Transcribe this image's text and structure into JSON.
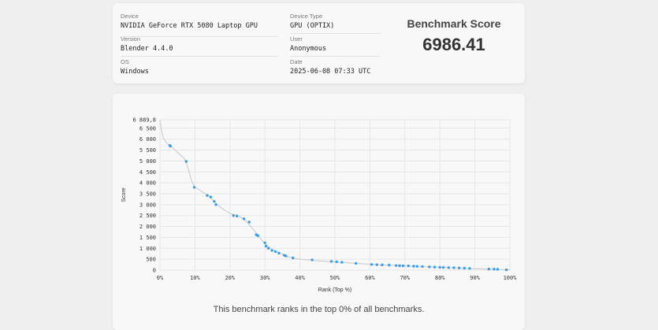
{
  "info": {
    "device": {
      "label": "Device",
      "value": "NVIDIA GeForce RTX 5080 Laptop GPU"
    },
    "version": {
      "label": "Version",
      "value": "Blender 4.4.0"
    },
    "os": {
      "label": "OS",
      "value": "Windows"
    },
    "device_type": {
      "label": "Device Type",
      "value": "GPU (OPTIX)"
    },
    "user": {
      "label": "User",
      "value": "Anonymous"
    },
    "date": {
      "label": "Date",
      "value": "2025-06-08 07:33 UTC"
    }
  },
  "score": {
    "title": "Benchmark Score",
    "value": "6986.41"
  },
  "note": "This benchmark ranks in the top 0% of all benchmarks.",
  "colors": {
    "point": "#3b9fe6",
    "line": "#cfcfcf"
  },
  "chart_data": {
    "type": "scatter",
    "xlabel": "Rank (Top %)",
    "ylabel": "Score",
    "xlim": [
      0,
      100
    ],
    "ylim": [
      0,
      6889.8
    ],
    "xticks": [
      "0%",
      "10%",
      "20%",
      "30%",
      "40%",
      "50%",
      "60%",
      "70%",
      "80%",
      "90%",
      "100%"
    ],
    "yticks": [
      {
        "v": 0,
        "t": "0"
      },
      {
        "v": 500,
        "t": "500"
      },
      {
        "v": 1000,
        "t": "1 000"
      },
      {
        "v": 1500,
        "t": "1 500"
      },
      {
        "v": 2000,
        "t": "2 000"
      },
      {
        "v": 2500,
        "t": "2 500"
      },
      {
        "v": 3000,
        "t": "3 000"
      },
      {
        "v": 3500,
        "t": "3 500"
      },
      {
        "v": 4000,
        "t": "4 000"
      },
      {
        "v": 4500,
        "t": "4 500"
      },
      {
        "v": 5000,
        "t": "5 000"
      },
      {
        "v": 5500,
        "t": "5 500"
      },
      {
        "v": 6000,
        "t": "6 000"
      },
      {
        "v": 6500,
        "t": "6 500"
      },
      {
        "v": 6889.8,
        "t": "6 889,8"
      }
    ],
    "curve": [
      [
        0,
        6889
      ],
      [
        0.5,
        6350
      ],
      [
        1,
        6050
      ],
      [
        2,
        5800
      ],
      [
        3,
        5700
      ],
      [
        4,
        5550
      ],
      [
        5,
        5400
      ],
      [
        6,
        5250
      ],
      [
        7,
        5100
      ],
      [
        8,
        4700
      ],
      [
        9,
        4100
      ],
      [
        10,
        3800
      ],
      [
        12,
        3600
      ],
      [
        14,
        3400
      ],
      [
        16,
        3050
      ],
      [
        18,
        2800
      ],
      [
        20,
        2600
      ],
      [
        22,
        2500
      ],
      [
        24,
        2350
      ],
      [
        26,
        2000
      ],
      [
        28,
        1600
      ],
      [
        30,
        1200
      ],
      [
        32,
        950
      ],
      [
        34,
        800
      ],
      [
        36,
        650
      ],
      [
        38,
        550
      ],
      [
        40,
        500
      ],
      [
        45,
        430
      ],
      [
        50,
        380
      ],
      [
        55,
        320
      ],
      [
        60,
        270
      ],
      [
        65,
        230
      ],
      [
        70,
        200
      ],
      [
        75,
        170
      ],
      [
        80,
        130
      ],
      [
        85,
        100
      ],
      [
        90,
        70
      ],
      [
        95,
        40
      ],
      [
        100,
        10
      ]
    ],
    "points": [
      [
        2.8,
        5710
      ],
      [
        3.0,
        5680
      ],
      [
        7.5,
        4980
      ],
      [
        9.8,
        3790
      ],
      [
        13.5,
        3420
      ],
      [
        14.5,
        3350
      ],
      [
        15.5,
        3150
      ],
      [
        16.0,
        3000
      ],
      [
        21.0,
        2500
      ],
      [
        22.0,
        2480
      ],
      [
        24.0,
        2350
      ],
      [
        25.5,
        2200
      ],
      [
        27.5,
        1620
      ],
      [
        28.0,
        1580
      ],
      [
        30.0,
        1250
      ],
      [
        30.3,
        1100
      ],
      [
        31.0,
        1000
      ],
      [
        32.0,
        900
      ],
      [
        33.0,
        850
      ],
      [
        34.0,
        780
      ],
      [
        35.5,
        680
      ],
      [
        36.0,
        650
      ],
      [
        38.0,
        560
      ],
      [
        43.5,
        470
      ],
      [
        49.0,
        400
      ],
      [
        50.5,
        380
      ],
      [
        52.0,
        360
      ],
      [
        56.0,
        310
      ],
      [
        60.5,
        260
      ],
      [
        62.0,
        250
      ],
      [
        63.5,
        240
      ],
      [
        65.5,
        230
      ],
      [
        67.5,
        210
      ],
      [
        68.5,
        205
      ],
      [
        69.5,
        200
      ],
      [
        71.0,
        195
      ],
      [
        72.5,
        180
      ],
      [
        73.5,
        175
      ],
      [
        75.0,
        165
      ],
      [
        77.0,
        150
      ],
      [
        78.5,
        140
      ],
      [
        80.0,
        130
      ],
      [
        81.0,
        125
      ],
      [
        82.5,
        115
      ],
      [
        84.0,
        110
      ],
      [
        85.5,
        100
      ],
      [
        87.0,
        90
      ],
      [
        88.5,
        80
      ],
      [
        94.0,
        50
      ],
      [
        95.5,
        45
      ],
      [
        96.5,
        40
      ],
      [
        99.0,
        15
      ]
    ]
  }
}
